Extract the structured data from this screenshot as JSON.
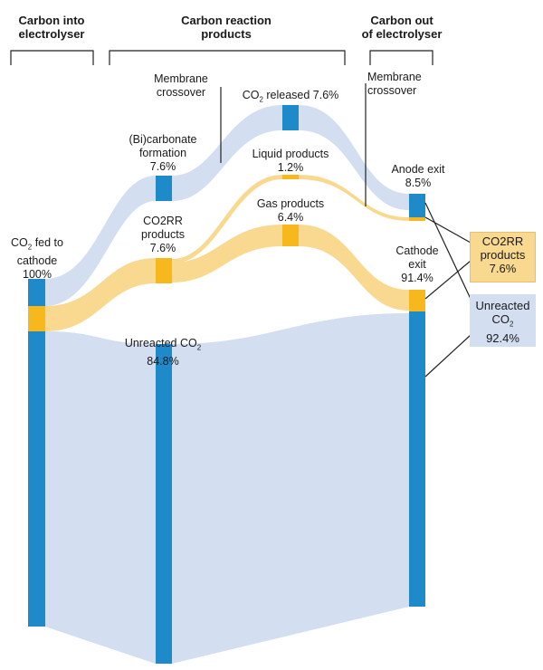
{
  "headers": {
    "into": [
      "Carbon into",
      "electrolyser"
    ],
    "reaction": [
      "Carbon reaction",
      "products"
    ],
    "out": [
      "Carbon out",
      "of electrolyser"
    ]
  },
  "nodes": {
    "fed": {
      "line1": "CO",
      "sub": "2",
      "line1b": " fed to",
      "line2": "cathode",
      "line3": "100%"
    },
    "membrane_left": {
      "line1": "Membrane",
      "line2": "crossover"
    },
    "bicarbonate": {
      "line1": "(Bi)carbonate",
      "line2": "formation",
      "line3": "7.6%"
    },
    "co2rr": {
      "line1": "CO2RR",
      "line2": "products",
      "line3": "7.6%"
    },
    "unreacted_mid": {
      "line1": "Unreacted CO",
      "sub": "2",
      "line2": "84.8%"
    },
    "co2_released": {
      "pre": "CO",
      "sub": "2",
      "post": " released 7.6%"
    },
    "liquid": {
      "line1": "Liquid products",
      "line2": "1.2%"
    },
    "gas": {
      "line1": "Gas products",
      "line2": "6.4%"
    },
    "membrane_right": {
      "line1": "Membrane",
      "line2": "crossover"
    },
    "anode": {
      "line1": "Anode exit",
      "line2": "8.5%"
    },
    "cathode": {
      "line1": "Cathode",
      "line2": "exit",
      "line3": "91.4%"
    }
  },
  "outputs": {
    "co2rr": {
      "line1": "CO2RR",
      "line2": "products",
      "line3": "7.6%"
    },
    "unreacted": {
      "line1": "Unreacted",
      "line2": "CO",
      "sub": "2",
      "line3": "92.4%"
    }
  },
  "colors": {
    "node_blue": "#1f8ac9",
    "node_orange": "#f6b81d",
    "flow_blue": "#d3dff0",
    "flow_orange": "#f9d98f"
  }
}
